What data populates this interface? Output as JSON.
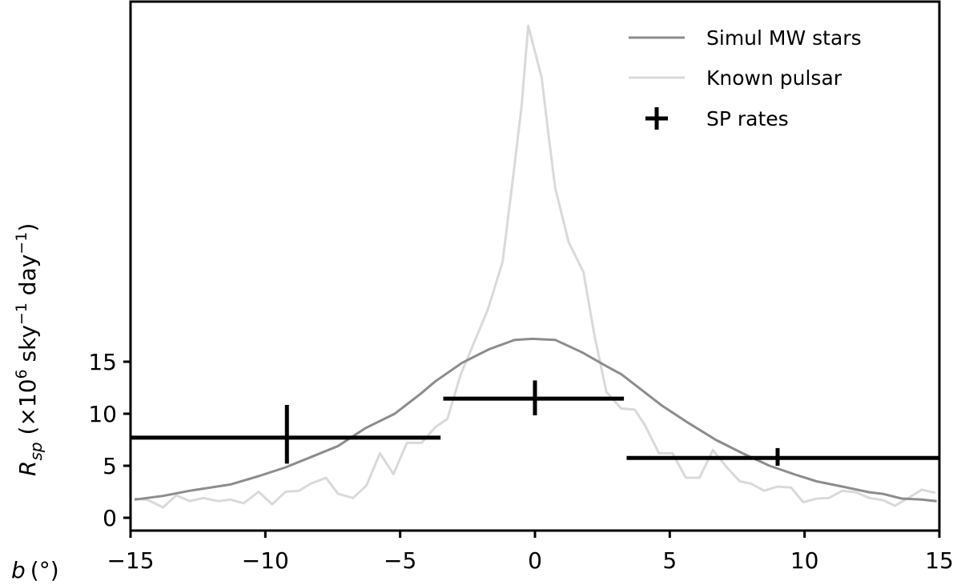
{
  "chart_data": {
    "type": "line",
    "title": "",
    "xlabel": "b (°)",
    "ylabel": "R_sp (×10^6 sky^-1 day^-1)",
    "xlabel_parts": {
      "main": "b",
      "unit": "(°)"
    },
    "ylabel_parts": {
      "main": "R",
      "sub": "sp",
      "unit_a": " (×10",
      "exp_a": "6",
      "unit_b": " sky",
      "exp_b": "−1",
      "unit_c": " day",
      "exp_c": "−1",
      "unit_d": ")"
    },
    "xlim": [
      -15,
      15
    ],
    "ylim": [
      0,
      49.7
    ],
    "xticks": [
      -15,
      -10,
      -5,
      0,
      5,
      10,
      15
    ],
    "xtick_labels": [
      "−15",
      "−10",
      "−5",
      "0",
      "5",
      "10",
      "15"
    ],
    "yticks": [
      0,
      5,
      10,
      15
    ],
    "ytick_labels": [
      "0",
      "5",
      "10",
      "15"
    ],
    "grid": false,
    "legend_position": "top-right",
    "series": [
      {
        "name": "Simul MW stars",
        "kind": "line",
        "color": "#8c8c8c",
        "x": [
          -14.85,
          -13.8,
          -12.8,
          -11.3,
          -10.25,
          -9.25,
          -8.25,
          -7.3,
          -6.3,
          -5.2,
          -4.25,
          -3.7,
          -2.7,
          -1.7,
          -0.75,
          -0.1,
          0.75,
          1.75,
          2.7,
          3.2,
          3.7,
          4.7,
          5.7,
          6.7,
          7.7,
          8.7,
          9.65,
          10.45,
          11.4,
          12.4,
          12.9,
          13.6,
          14.35,
          14.9
        ],
        "y": [
          1.75,
          2.1,
          2.6,
          3.2,
          4.0,
          4.85,
          5.9,
          6.9,
          8.6,
          10.0,
          11.9,
          13.1,
          14.9,
          16.2,
          17.1,
          17.2,
          17.1,
          15.9,
          14.5,
          13.8,
          12.8,
          10.8,
          9.1,
          7.5,
          6.2,
          5.0,
          4.15,
          3.5,
          3.0,
          2.45,
          2.3,
          1.85,
          1.75,
          1.6
        ]
      },
      {
        "name": "Known pulsar",
        "kind": "line",
        "color": "#d9d9d9",
        "x": [
          -14.85,
          -14.35,
          -13.8,
          -13.3,
          -12.8,
          -12.3,
          -11.75,
          -11.3,
          -10.8,
          -10.25,
          -9.75,
          -9.25,
          -8.75,
          -8.3,
          -7.75,
          -7.3,
          -6.75,
          -6.25,
          -5.75,
          -5.25,
          -4.75,
          -4.2,
          -3.7,
          -3.25,
          -2.75,
          -2.2,
          -1.75,
          -1.2,
          -0.8,
          -0.5,
          -0.25,
          0.25,
          0.5,
          0.75,
          1.25,
          1.8,
          2.2,
          2.65,
          3.2,
          3.7,
          4.1,
          4.6,
          5.1,
          5.6,
          6.1,
          6.6,
          7.1,
          7.6,
          8.0,
          8.5,
          9.0,
          9.5,
          9.95,
          10.45,
          10.9,
          11.4,
          11.9,
          12.4,
          12.9,
          13.35,
          13.85,
          14.35,
          14.85
        ],
        "y": [
          1.85,
          1.7,
          1.0,
          2.15,
          1.6,
          1.9,
          1.6,
          1.75,
          1.4,
          2.5,
          1.3,
          2.5,
          2.6,
          3.3,
          3.85,
          2.3,
          1.9,
          3.1,
          6.2,
          4.2,
          7.2,
          7.2,
          8.7,
          9.5,
          13.8,
          17.2,
          20.0,
          24.6,
          33.0,
          39.5,
          47.3,
          42.3,
          36.9,
          31.7,
          26.5,
          23.6,
          17.6,
          12.1,
          10.5,
          10.4,
          8.8,
          6.2,
          6.2,
          3.85,
          3.85,
          6.5,
          4.9,
          3.5,
          3.3,
          2.6,
          3.0,
          2.9,
          1.5,
          1.85,
          1.9,
          2.6,
          2.45,
          1.9,
          1.7,
          1.15,
          1.9,
          2.7,
          2.4
        ]
      },
      {
        "name": "SP rates",
        "kind": "errorbar",
        "color": "#000000",
        "points": [
          {
            "x": -9.2,
            "y": 7.7,
            "xerr_low": -15.0,
            "xerr_high": -3.5,
            "yerr_low": 5.2,
            "yerr_high": 10.85
          },
          {
            "x": 0.0,
            "y": 11.45,
            "xerr_low": -3.4,
            "xerr_high": 3.3,
            "yerr_low": 9.85,
            "yerr_high": 13.2
          },
          {
            "x": 9.0,
            "y": 5.75,
            "xerr_low": 3.4,
            "xerr_high": 15.0,
            "yerr_low": 5.0,
            "yerr_high": 6.7
          }
        ]
      }
    ]
  }
}
